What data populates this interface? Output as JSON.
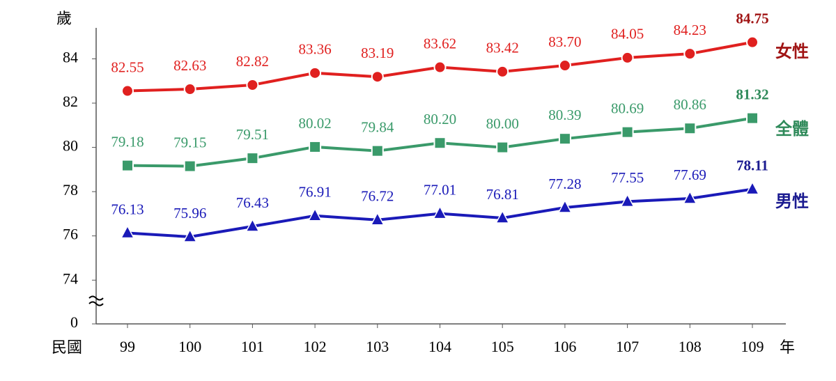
{
  "chart_data": {
    "type": "line",
    "y_label": "歲",
    "x_prefix": "民國",
    "x_suffix": "年",
    "categories": [
      "99",
      "100",
      "101",
      "102",
      "103",
      "104",
      "105",
      "106",
      "107",
      "108",
      "109"
    ],
    "ylim": [
      0,
      85.4
    ],
    "y_break": [
      0,
      73
    ],
    "yticks": [
      0,
      74,
      76,
      78,
      80,
      82,
      84
    ],
    "series": [
      {
        "name": "女性",
        "color": "#e0201f",
        "label_color": "#a01414",
        "marker": "circle",
        "values": [
          82.55,
          82.63,
          82.82,
          83.36,
          83.19,
          83.62,
          83.42,
          83.7,
          84.05,
          84.23,
          84.75
        ],
        "value_labels": [
          "82.55",
          "82.63",
          "82.82",
          "83.36",
          "83.19",
          "83.62",
          "83.42",
          "83.70",
          "84.05",
          "84.23",
          "84.75"
        ]
      },
      {
        "name": "全體",
        "color": "#3a9a6a",
        "label_color": "#2f8a5a",
        "marker": "square",
        "values": [
          79.18,
          79.15,
          79.51,
          80.02,
          79.84,
          80.2,
          80.0,
          80.39,
          80.69,
          80.86,
          81.32
        ],
        "value_labels": [
          "79.18",
          "79.15",
          "79.51",
          "80.02",
          "79.84",
          "80.20",
          "80.00",
          "80.39",
          "80.69",
          "80.86",
          "81.32"
        ]
      },
      {
        "name": "男性",
        "color": "#1a1ab8",
        "label_color": "#1a1a90",
        "marker": "triangle",
        "values": [
          76.13,
          75.96,
          76.43,
          76.91,
          76.72,
          77.01,
          76.81,
          77.28,
          77.55,
          77.69,
          78.11
        ],
        "value_labels": [
          "76.13",
          "75.96",
          "76.43",
          "76.91",
          "76.72",
          "77.01",
          "76.81",
          "77.28",
          "77.55",
          "77.69",
          "78.11"
        ]
      }
    ]
  }
}
